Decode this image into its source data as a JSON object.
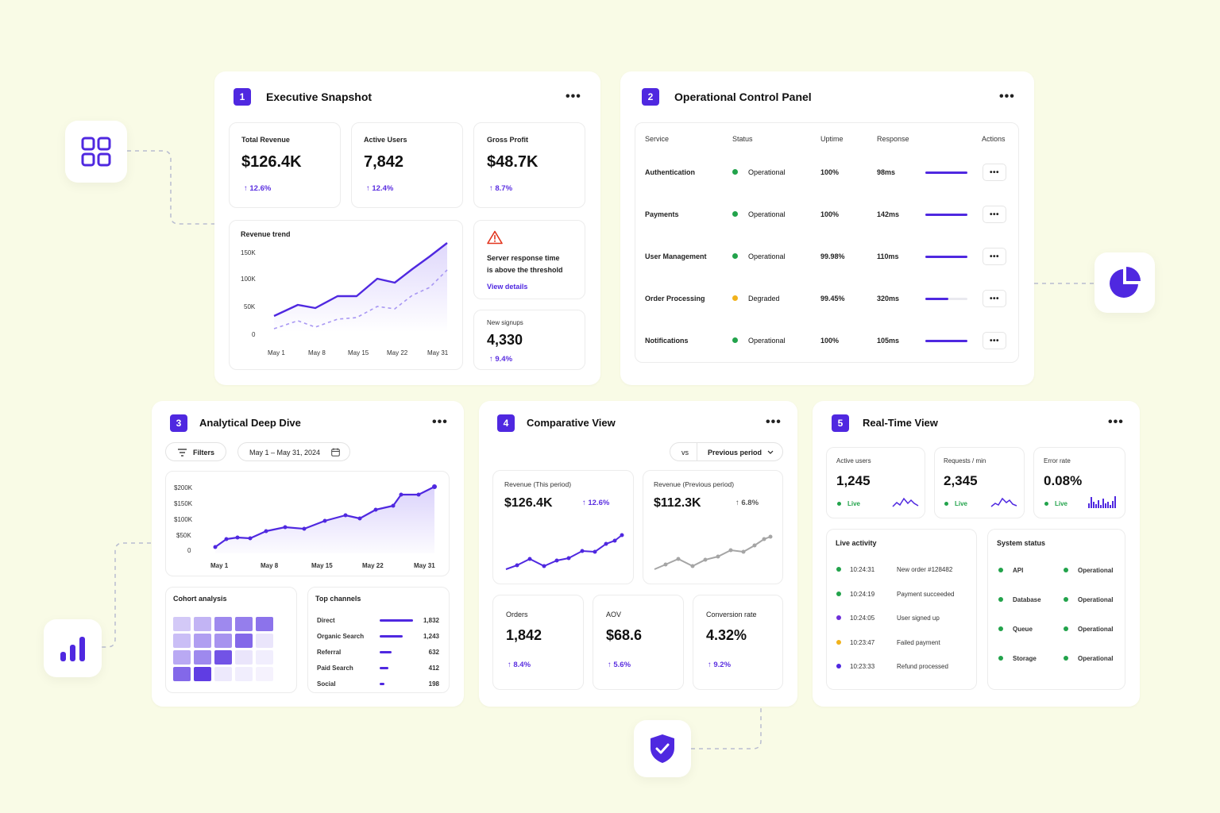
{
  "colors": {
    "accent": "#4f28e0",
    "green": "#22a34b",
    "amber": "#f1b21b",
    "red": "#e2341d",
    "purple": "#6e2fd9"
  },
  "icons": {
    "left_top": "grid-icon",
    "right_mid": "pie-chart-icon",
    "left_bottom": "bar-chart-icon",
    "bottom": "shield-check-icon"
  },
  "p1": {
    "num": "1",
    "title": "Executive Snapshot",
    "more": "•••",
    "kpis": [
      {
        "label": "Total Revenue",
        "value": "$126.4K",
        "delta": "↑ 12.6%"
      },
      {
        "label": "Active Users",
        "value": "7,842",
        "delta": "↑ 12.4%"
      },
      {
        "label": "Gross Profit",
        "value": "$48.7K",
        "delta": "↑ 8.7%"
      }
    ],
    "trend": {
      "title": "Revenue trend",
      "yticks": [
        "150K",
        "100K",
        "50K",
        "0"
      ],
      "xticks": [
        "May 1",
        "May 8",
        "May 15",
        "May 22",
        "May 31"
      ]
    },
    "alert": {
      "text1": "Server response time",
      "text2": "is above the threshold",
      "link": "View details"
    },
    "signups": {
      "label": "New signups",
      "value": "4,330",
      "delta": "↑ 9.4%"
    }
  },
  "p2": {
    "num": "2",
    "title": "Operational Control Panel",
    "more": "•••",
    "headers": [
      "Service",
      "Status",
      "Uptime",
      "Response",
      "Actions"
    ],
    "rows": [
      {
        "service": "Authentication",
        "status": "Operational",
        "uptime": "100%",
        "response": "98ms",
        "action": "•••",
        "level": 1.0,
        "color": "#22a34b"
      },
      {
        "service": "Payments",
        "status": "Operational",
        "uptime": "100%",
        "response": "142ms",
        "action": "•••",
        "level": 1.0,
        "color": "#22a34b"
      },
      {
        "service": "User Management",
        "status": "Operational",
        "uptime": "99.98%",
        "response": "110ms",
        "action": "•••",
        "level": 1.0,
        "color": "#22a34b"
      },
      {
        "service": "Order Processing",
        "status": "Degraded",
        "uptime": "99.45%",
        "response": "320ms",
        "action": "•••",
        "level": 0.55,
        "color": "#f1b21b"
      },
      {
        "service": "Notifications",
        "status": "Operational",
        "uptime": "100%",
        "response": "105ms",
        "action": "•••",
        "level": 1.0,
        "color": "#22a34b"
      }
    ]
  },
  "p3": {
    "num": "3",
    "title": "Analytical Deep Dive",
    "more": "•••",
    "filters": "Filters",
    "date": "May 1 – May 31, 2024",
    "chart": {
      "yticks": [
        "$200K",
        "$150K",
        "$100K",
        "$50K",
        "0"
      ],
      "xticks": [
        "May 1",
        "May 8",
        "May 15",
        "May 22",
        "May 31"
      ]
    },
    "cohort": {
      "title": "Cohort analysis"
    },
    "channels": {
      "title": "Top channels",
      "items": [
        {
          "name": "Direct",
          "value": "1,832",
          "share": 1.0
        },
        {
          "name": "Organic Search",
          "value": "1,243",
          "share": 0.68
        },
        {
          "name": "Referral",
          "value": "632",
          "share": 0.35
        },
        {
          "name": "Paid Search",
          "value": "412",
          "share": 0.25
        },
        {
          "name": "Social",
          "value": "198",
          "share": 0.15
        }
      ]
    }
  },
  "p4": {
    "num": "4",
    "title": "Comparative View",
    "more": "•••",
    "vs": "vs",
    "period": "Previous period",
    "rev_this": {
      "label": "Revenue (This period)",
      "value": "$126.4K",
      "delta": "↑ 12.6%"
    },
    "rev_prev": {
      "label": "Revenue (Previous period)",
      "value": "$112.3K",
      "delta": "↑ 6.8%"
    },
    "kpis": [
      {
        "label": "Orders",
        "value": "1,842",
        "delta": "↑ 8.4%"
      },
      {
        "label": "AOV",
        "value": "$68.6",
        "delta": "↑ 5.6%"
      },
      {
        "label": "Conversion rate",
        "value": "4.32%",
        "delta": "↑ 9.2%"
      }
    ]
  },
  "p5": {
    "num": "5",
    "title": "Real-Time View",
    "more": "•••",
    "kpis": [
      {
        "label": "Active users",
        "value": "1,245",
        "live": "Live"
      },
      {
        "label": "Requests / min",
        "value": "2,345",
        "live": "Live"
      },
      {
        "label": "Error rate",
        "value": "0.08%",
        "live": "Live"
      }
    ],
    "activity": {
      "title": "Live activity",
      "items": [
        {
          "time": "10:24:31",
          "text": "New order #128482",
          "color": "#22a34b"
        },
        {
          "time": "10:24:19",
          "text": "Payment succeeded",
          "color": "#22a34b"
        },
        {
          "time": "10:24:05",
          "text": "User signed up",
          "color": "#6e2fd9"
        },
        {
          "time": "10:23:47",
          "text": "Failed payment",
          "color": "#f1b21b"
        },
        {
          "time": "10:23:33",
          "text": "Refund processed",
          "color": "#4f28e0"
        }
      ]
    },
    "system": {
      "title": "System status",
      "items": [
        {
          "name": "API",
          "status": "Operational"
        },
        {
          "name": "Database",
          "status": "Operational"
        },
        {
          "name": "Queue",
          "status": "Operational"
        },
        {
          "name": "Storage",
          "status": "Operational"
        }
      ]
    }
  }
}
